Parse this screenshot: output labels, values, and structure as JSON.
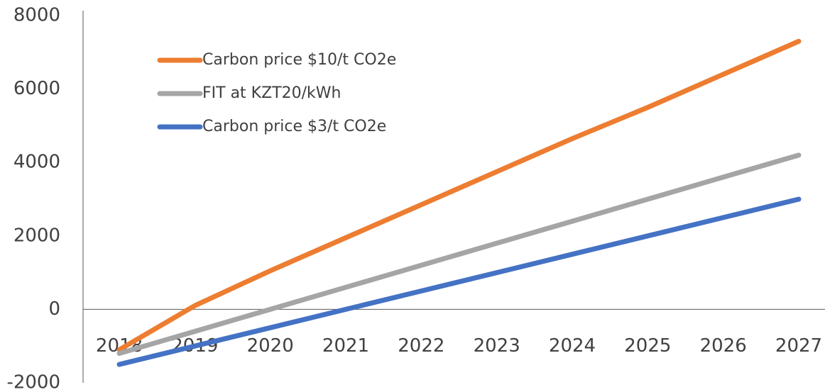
{
  "chart_data": {
    "type": "line",
    "x": [
      "2018",
      "2019",
      "2020",
      "2021",
      "2022",
      "2023",
      "2024",
      "2025",
      "2026",
      "2027"
    ],
    "series": [
      {
        "name": "Carbon price $10/t CO2e",
        "color": "#ed7d31",
        "values": [
          -1100,
          100,
          1050,
          1950,
          2850,
          3750,
          4650,
          5500,
          6400,
          7300
        ]
      },
      {
        "name": "FIT at KZT20/kWh",
        "color": "#a5a5a5",
        "values": [
          -1200,
          -600,
          0,
          600,
          1200,
          1800,
          2400,
          3000,
          3600,
          4200
        ]
      },
      {
        "name": "Carbon price $3/t CO2e",
        "color": "#4472c4",
        "values": [
          -1500,
          -1000,
          -500,
          0,
          500,
          1000,
          1500,
          2000,
          2500,
          3000
        ]
      }
    ],
    "ylim": [
      -2000,
      8000
    ],
    "yticks": [
      -2000,
      0,
      2000,
      4000,
      6000,
      8000
    ],
    "grid": false,
    "legend": "upper left"
  }
}
